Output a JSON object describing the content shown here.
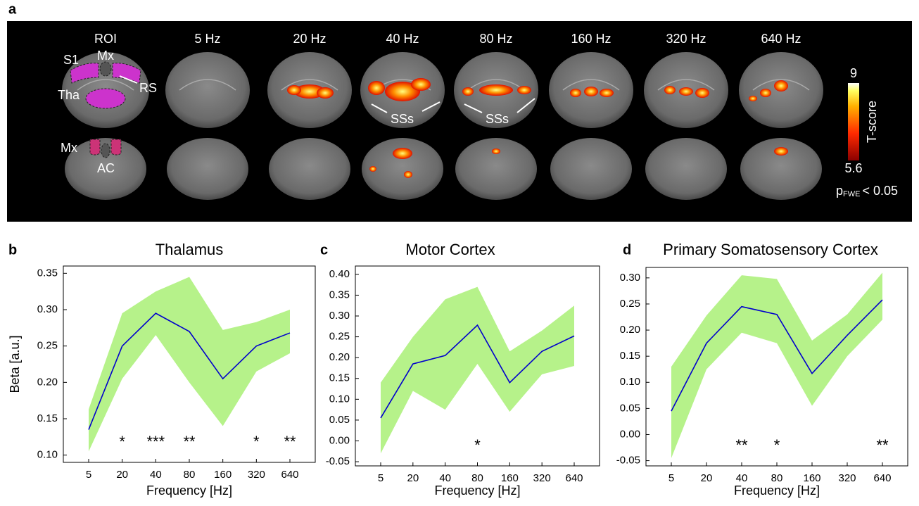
{
  "panel_a": {
    "label": "a",
    "column_titles": [
      "ROI",
      "5 Hz",
      "20 Hz",
      "40 Hz",
      "80 Hz",
      "160 Hz",
      "320 Hz",
      "640 Hz"
    ],
    "roi_labels": {
      "s1": "S1",
      "mx_top": "Mx",
      "rs": "RS",
      "tha": "Tha",
      "mx_bottom": "Mx",
      "ac": "AC"
    },
    "annotations": [
      "SSs",
      "SSs"
    ],
    "colorbar": {
      "max": "9",
      "min": "5.6",
      "title": "T-score"
    },
    "threshold": {
      "p": "p",
      "sub": "FWE",
      "rest": "< 0.05"
    }
  },
  "chart_data": [
    {
      "type": "line",
      "panel": "b",
      "title": "Thalamus",
      "x_label": "Frequency [Hz]",
      "y_label": "Beta [a.u.]",
      "categories": [
        "5",
        "20",
        "40",
        "80",
        "160",
        "320",
        "640"
      ],
      "values": [
        0.135,
        0.25,
        0.295,
        0.27,
        0.205,
        0.25,
        0.268
      ],
      "lower": [
        0.105,
        0.205,
        0.265,
        0.2,
        0.14,
        0.215,
        0.24
      ],
      "upper": [
        0.163,
        0.295,
        0.325,
        0.345,
        0.272,
        0.283,
        0.3
      ],
      "annotations": [
        null,
        "*",
        "***",
        "**",
        null,
        "*",
        "**"
      ],
      "color": "#0000cc",
      "band_color": "#b6f28a",
      "ylim": [
        0.09,
        0.36
      ],
      "yticks": [
        {
          "value": 0.1,
          "label": "0.10"
        },
        {
          "value": 0.15,
          "label": "0.15"
        },
        {
          "value": 0.2,
          "label": "0.20"
        },
        {
          "value": 0.25,
          "label": "0.25"
        },
        {
          "value": 0.3,
          "label": "0.30"
        },
        {
          "value": 0.35,
          "label": "0.35"
        }
      ]
    },
    {
      "type": "line",
      "panel": "c",
      "title": "Motor Cortex",
      "x_label": "Frequency [Hz]",
      "categories": [
        "5",
        "20",
        "40",
        "80",
        "160",
        "320",
        "640"
      ],
      "values": [
        0.055,
        0.185,
        0.205,
        0.278,
        0.14,
        0.215,
        0.252
      ],
      "lower": [
        -0.03,
        0.12,
        0.075,
        0.185,
        0.07,
        0.16,
        0.18
      ],
      "upper": [
        0.14,
        0.25,
        0.34,
        0.37,
        0.215,
        0.265,
        0.325
      ],
      "annotations": [
        null,
        null,
        null,
        "*",
        null,
        null,
        null
      ],
      "color": "#0000cc",
      "band_color": "#b6f28a",
      "ylim": [
        -0.06,
        0.42
      ],
      "yticks": [
        {
          "value": -0.05,
          "label": "-0.05"
        },
        {
          "value": 0,
          "label": "0.00"
        },
        {
          "value": 0.05,
          "label": "0.05"
        },
        {
          "value": 0.1,
          "label": "0.10"
        },
        {
          "value": 0.15,
          "label": "0.15"
        },
        {
          "value": 0.2,
          "label": "0.20"
        },
        {
          "value": 0.25,
          "label": "0.25"
        },
        {
          "value": 0.3,
          "label": "0.30"
        },
        {
          "value": 0.35,
          "label": "0.35"
        },
        {
          "value": 0.4,
          "label": "0.40"
        }
      ]
    },
    {
      "type": "line",
      "panel": "d",
      "title": "Primary Somatosensory Cortex",
      "x_label": "Frequency [Hz]",
      "categories": [
        "5",
        "20",
        "40",
        "80",
        "160",
        "320",
        "640"
      ],
      "values": [
        0.045,
        0.175,
        0.245,
        0.23,
        0.117,
        0.19,
        0.258
      ],
      "lower": [
        -0.045,
        0.125,
        0.195,
        0.175,
        0.055,
        0.15,
        0.22
      ],
      "upper": [
        0.13,
        0.228,
        0.305,
        0.298,
        0.18,
        0.23,
        0.31
      ],
      "annotations": [
        null,
        null,
        "**",
        "*",
        null,
        null,
        "**"
      ],
      "color": "#0000cc",
      "band_color": "#b6f28a",
      "ylim": [
        -0.06,
        0.32
      ],
      "yticks": [
        {
          "value": -0.05,
          "label": "-0.05"
        },
        {
          "value": 0,
          "label": "0.00"
        },
        {
          "value": 0.05,
          "label": "0.05"
        },
        {
          "value": 0.1,
          "label": "0.10"
        },
        {
          "value": 0.15,
          "label": "0.15"
        },
        {
          "value": 0.2,
          "label": "0.20"
        },
        {
          "value": 0.25,
          "label": "0.25"
        },
        {
          "value": 0.3,
          "label": "0.30"
        }
      ]
    }
  ]
}
